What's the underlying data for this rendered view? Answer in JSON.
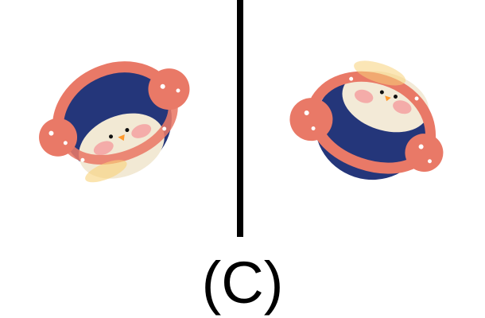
{
  "panel_label": "(C)",
  "icons": {
    "left_view": "penguin-with-earmuffs-icon",
    "right_view": "penguin-with-earmuffs-icon"
  },
  "colors": {
    "background": "#ffffff",
    "divider": "#000000",
    "body_blue": "#24367a",
    "earmuff_coral": "#e97967",
    "face_cream": "#f3ead7",
    "cheek_pink": "#f4a5a4",
    "beak_orange": "#ff9a2e"
  }
}
